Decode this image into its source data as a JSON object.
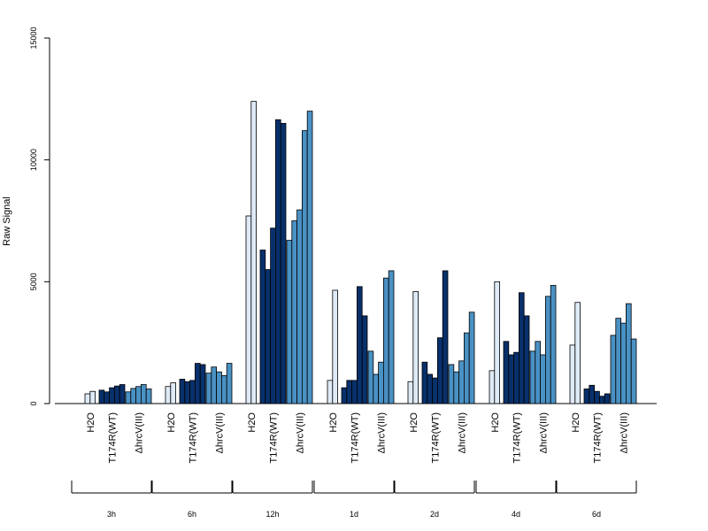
{
  "chart_data": {
    "type": "bar",
    "ylabel": "Raw Signal",
    "ylim": [
      0,
      15000
    ],
    "yticks": [
      "0",
      "5000",
      "10000",
      "15000"
    ],
    "colors": {
      "H2O": "#deebf7",
      "T174R(WT)": "#08306b",
      "ΔhrcV(III)": "#4a91c4",
      "border": "#000000"
    },
    "groups": [
      {
        "label": "3h",
        "subgroups": [
          {
            "label": "H2O",
            "values": [
              400,
              500
            ]
          },
          {
            "label": "T174R(WT)",
            "values": [
              550,
              480,
              650,
              720,
              780
            ]
          },
          {
            "label": "ΔhrcV(III)",
            "values": [
              480,
              620,
              700,
              780,
              600
            ]
          }
        ]
      },
      {
        "label": "6h",
        "subgroups": [
          {
            "label": "H2O",
            "values": [
              700,
              850
            ]
          },
          {
            "label": "T174R(WT)",
            "values": [
              1000,
              900,
              950,
              1650,
              1600
            ]
          },
          {
            "label": "ΔhrcV(III)",
            "values": [
              1250,
              1500,
              1300,
              1150,
              1650
            ]
          }
        ]
      },
      {
        "label": "12h",
        "subgroups": [
          {
            "label": "H2O",
            "values": [
              7700,
              12400
            ]
          },
          {
            "label": "T174R(WT)",
            "values": [
              6300,
              5500,
              7200,
              11650,
              11500
            ]
          },
          {
            "label": "ΔhrcV(III)",
            "values": [
              6700,
              7500,
              7950,
              11200,
              12000
            ]
          }
        ]
      },
      {
        "label": "1d",
        "subgroups": [
          {
            "label": "H2O",
            "values": [
              950,
              4650
            ]
          },
          {
            "label": "T174R(WT)",
            "values": [
              650,
              950,
              950,
              4800,
              3600
            ]
          },
          {
            "label": "ΔhrcV(III)",
            "values": [
              2150,
              1200,
              1700,
              5150,
              5450
            ]
          }
        ]
      },
      {
        "label": "2d",
        "subgroups": [
          {
            "label": "H2O",
            "values": [
              900,
              4600
            ]
          },
          {
            "label": "T174R(WT)",
            "values": [
              1700,
              1200,
              1050,
              2700,
              5450
            ]
          },
          {
            "label": "ΔhrcV(III)",
            "values": [
              1600,
              1300,
              1750,
              2900,
              3750
            ]
          }
        ]
      },
      {
        "label": "4d",
        "subgroups": [
          {
            "label": "H2O",
            "values": [
              1350,
              5000
            ]
          },
          {
            "label": "T174R(WT)",
            "values": [
              2550,
              2000,
              2100,
              4550,
              3600
            ]
          },
          {
            "label": "ΔhrcV(III)",
            "values": [
              2150,
              2550,
              2000,
              4400,
              4850
            ]
          }
        ]
      },
      {
        "label": "6d",
        "subgroups": [
          {
            "label": "H2O",
            "values": [
              2400,
              4150
            ]
          },
          {
            "label": "T174R(WT)",
            "values": [
              600,
              750,
              500,
              300,
              400
            ]
          },
          {
            "label": "ΔhrcV(III)",
            "values": [
              2800,
              3500,
              3300,
              4100,
              2650
            ]
          }
        ]
      }
    ]
  }
}
